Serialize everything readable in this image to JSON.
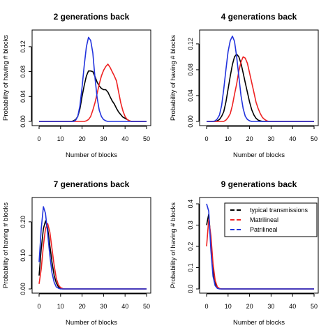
{
  "chart_data": [
    {
      "type": "line",
      "title": "2 generations back",
      "xlabel": "Number of blocks",
      "ylabel": "Probability of having # blocks",
      "xlim": [
        0,
        50
      ],
      "ylim": [
        0,
        0.14
      ],
      "xticks": [
        0,
        10,
        20,
        30,
        40,
        50
      ],
      "yticks": [
        "0.00",
        "0.04",
        "0.08",
        "0.12"
      ],
      "x": [
        0,
        1,
        2,
        3,
        4,
        5,
        6,
        7,
        8,
        9,
        10,
        11,
        12,
        13,
        14,
        15,
        16,
        17,
        18,
        19,
        20,
        21,
        22,
        23,
        24,
        25,
        26,
        27,
        28,
        29,
        30,
        31,
        32,
        33,
        34,
        35,
        36,
        37,
        38,
        39,
        40,
        41,
        42,
        43,
        44,
        45,
        46,
        47,
        48,
        49,
        50
      ],
      "series": [
        {
          "name": "typical transmissions",
          "color": "#000000",
          "values": [
            0,
            0,
            0,
            0,
            0,
            0,
            0,
            0,
            0,
            0,
            0,
            0,
            0,
            0,
            0,
            0,
            0.001,
            0.003,
            0.008,
            0.02,
            0.04,
            0.058,
            0.073,
            0.081,
            0.081,
            0.08,
            0.072,
            0.063,
            0.057,
            0.053,
            0.051,
            0.051,
            0.047,
            0.04,
            0.033,
            0.028,
            0.021,
            0.015,
            0.011,
            0.007,
            0.005,
            0.003,
            0.001,
            0,
            0,
            0,
            0,
            0,
            0,
            0,
            0
          ]
        },
        {
          "name": "Matrilineal",
          "color": "#ee2222",
          "values": [
            0,
            0,
            0,
            0,
            0,
            0,
            0,
            0,
            0,
            0,
            0,
            0,
            0,
            0,
            0,
            0,
            0,
            0,
            0,
            0,
            0,
            0,
            0.001,
            0.003,
            0.008,
            0.018,
            0.03,
            0.045,
            0.06,
            0.073,
            0.082,
            0.088,
            0.092,
            0.087,
            0.08,
            0.073,
            0.065,
            0.047,
            0.03,
            0.017,
            0.008,
            0.003,
            0.001,
            0,
            0,
            0,
            0,
            0,
            0,
            0,
            0
          ]
        },
        {
          "name": "Patrilineal",
          "color": "#2233dd",
          "values": [
            0,
            0,
            0,
            0,
            0,
            0,
            0,
            0,
            0,
            0,
            0,
            0,
            0,
            0,
            0,
            0,
            0,
            0.002,
            0.008,
            0.025,
            0.055,
            0.09,
            0.12,
            0.135,
            0.13,
            0.11,
            0.07,
            0.038,
            0.018,
            0.008,
            0.003,
            0.001,
            0,
            0,
            0,
            0,
            0,
            0,
            0,
            0,
            0,
            0,
            0,
            0,
            0,
            0,
            0,
            0,
            0,
            0,
            0
          ]
        }
      ]
    },
    {
      "type": "line",
      "title": "4 generations back",
      "xlabel": "Number of blocks",
      "ylabel": "Probability of having # blocks",
      "xlim": [
        0,
        50
      ],
      "ylim": [
        0,
        0.135
      ],
      "xticks": [
        0,
        10,
        20,
        30,
        40,
        50
      ],
      "yticks": [
        "0.00",
        "0.04",
        "0.08",
        "0.12"
      ],
      "x": [
        0,
        1,
        2,
        3,
        4,
        5,
        6,
        7,
        8,
        9,
        10,
        11,
        12,
        13,
        14,
        15,
        16,
        17,
        18,
        19,
        20,
        21,
        22,
        23,
        24,
        25,
        26,
        27,
        28,
        29,
        30,
        31,
        32,
        33,
        34,
        35,
        36,
        37,
        38,
        39,
        40,
        41,
        42,
        43,
        44,
        45,
        46,
        47,
        48,
        49,
        50
      ],
      "series": [
        {
          "name": "typical transmissions",
          "color": "#000000",
          "values": [
            0,
            0,
            0,
            0,
            0,
            0.001,
            0.003,
            0.008,
            0.015,
            0.03,
            0.05,
            0.07,
            0.088,
            0.1,
            0.104,
            0.1,
            0.09,
            0.075,
            0.06,
            0.045,
            0.03,
            0.018,
            0.01,
            0.005,
            0.002,
            0.001,
            0,
            0,
            0,
            0,
            0,
            0,
            0,
            0,
            0,
            0,
            0,
            0,
            0,
            0,
            0,
            0,
            0,
            0,
            0,
            0,
            0,
            0,
            0,
            0,
            0
          ]
        },
        {
          "name": "Matrilineal",
          "color": "#ee2222",
          "values": [
            0,
            0,
            0,
            0,
            0,
            0,
            0,
            0,
            0,
            0.002,
            0.006,
            0.012,
            0.025,
            0.042,
            0.058,
            0.078,
            0.092,
            0.1,
            0.098,
            0.09,
            0.075,
            0.06,
            0.045,
            0.03,
            0.02,
            0.012,
            0.006,
            0.003,
            0.001,
            0,
            0,
            0,
            0,
            0,
            0,
            0,
            0,
            0,
            0,
            0,
            0,
            0,
            0,
            0,
            0,
            0,
            0,
            0,
            0,
            0,
            0
          ]
        },
        {
          "name": "Patrilineal",
          "color": "#2233dd",
          "values": [
            0,
            0,
            0,
            0,
            0.001,
            0.004,
            0.01,
            0.025,
            0.05,
            0.08,
            0.108,
            0.125,
            0.132,
            0.124,
            0.1,
            0.07,
            0.04,
            0.02,
            0.008,
            0.003,
            0.001,
            0,
            0,
            0,
            0,
            0,
            0,
            0,
            0,
            0,
            0,
            0,
            0,
            0,
            0,
            0,
            0,
            0,
            0,
            0,
            0,
            0,
            0,
            0,
            0,
            0,
            0,
            0,
            0,
            0,
            0
          ]
        }
      ]
    },
    {
      "type": "line",
      "title": "7 generations back",
      "xlabel": "Number of blocks",
      "ylabel": "Probability of having # blocks",
      "xlim": [
        0,
        50
      ],
      "ylim": [
        0,
        0.26
      ],
      "xticks": [
        0,
        10,
        20,
        30,
        40,
        50
      ],
      "yticks": [
        "0.00",
        "0.10",
        "0.20"
      ],
      "x": [
        0,
        1,
        2,
        3,
        4,
        5,
        6,
        7,
        8,
        9,
        10,
        11,
        12,
        13,
        14,
        15,
        16,
        17,
        18,
        19,
        20,
        21,
        22,
        23,
        24,
        25,
        26,
        27,
        28,
        29,
        30,
        31,
        32,
        33,
        34,
        35,
        36,
        37,
        38,
        39,
        40,
        41,
        42,
        43,
        44,
        45,
        46,
        47,
        48,
        49,
        50
      ],
      "series": [
        {
          "name": "typical transmissions",
          "color": "#000000",
          "values": [
            0.04,
            0.12,
            0.18,
            0.203,
            0.18,
            0.13,
            0.08,
            0.04,
            0.018,
            0.006,
            0.002,
            0,
            0,
            0,
            0,
            0,
            0,
            0,
            0,
            0,
            0,
            0,
            0,
            0,
            0,
            0,
            0,
            0,
            0,
            0,
            0,
            0,
            0,
            0,
            0,
            0,
            0,
            0,
            0,
            0,
            0,
            0,
            0,
            0,
            0,
            0,
            0,
            0,
            0,
            0,
            0
          ]
        },
        {
          "name": "Matrilineal",
          "color": "#ee2222",
          "values": [
            0.015,
            0.06,
            0.13,
            0.18,
            0.195,
            0.17,
            0.12,
            0.07,
            0.032,
            0.012,
            0.004,
            0.001,
            0,
            0,
            0,
            0,
            0,
            0,
            0,
            0,
            0,
            0,
            0,
            0,
            0,
            0,
            0,
            0,
            0,
            0,
            0,
            0,
            0,
            0,
            0,
            0,
            0,
            0,
            0,
            0,
            0,
            0,
            0,
            0,
            0,
            0,
            0,
            0,
            0,
            0,
            0
          ]
        },
        {
          "name": "Patrilineal",
          "color": "#2233dd",
          "values": [
            0.08,
            0.18,
            0.245,
            0.225,
            0.165,
            0.1,
            0.048,
            0.02,
            0.006,
            0.002,
            0,
            0,
            0,
            0,
            0,
            0,
            0,
            0,
            0,
            0,
            0,
            0,
            0,
            0,
            0,
            0,
            0,
            0,
            0,
            0,
            0,
            0,
            0,
            0,
            0,
            0,
            0,
            0,
            0,
            0,
            0,
            0,
            0,
            0,
            0,
            0,
            0,
            0,
            0,
            0,
            0
          ]
        }
      ]
    },
    {
      "type": "line",
      "title": "9 generations back",
      "xlabel": "Number of blocks",
      "ylabel": "Probability of having # blocks",
      "xlim": [
        0,
        50
      ],
      "ylim": [
        0,
        0.41
      ],
      "xticks": [
        0,
        10,
        20,
        30,
        40,
        50
      ],
      "yticks": [
        "0.0",
        "0.1",
        "0.2",
        "0.3",
        "0.4"
      ],
      "x": [
        0,
        1,
        2,
        3,
        4,
        5,
        6,
        7,
        8,
        9,
        10,
        11,
        12,
        13,
        14,
        15,
        16,
        17,
        18,
        19,
        20,
        21,
        22,
        23,
        24,
        25,
        26,
        27,
        28,
        29,
        30,
        31,
        32,
        33,
        34,
        35,
        36,
        37,
        38,
        39,
        40,
        41,
        42,
        43,
        44,
        45,
        46,
        47,
        48,
        49,
        50
      ],
      "legend": {
        "position": "top-right",
        "entries": [
          "typical transmissions",
          "Matrilineal",
          "Patrilineal"
        ]
      },
      "series": [
        {
          "name": "typical transmissions",
          "color": "#000000",
          "values": [
            0.3,
            0.352,
            0.22,
            0.09,
            0.025,
            0.006,
            0.001,
            0,
            0,
            0,
            0,
            0,
            0,
            0,
            0,
            0,
            0,
            0,
            0,
            0,
            0,
            0,
            0,
            0,
            0,
            0,
            0,
            0,
            0,
            0,
            0,
            0,
            0,
            0,
            0,
            0,
            0,
            0,
            0,
            0,
            0,
            0,
            0,
            0,
            0,
            0,
            0,
            0,
            0,
            0,
            0
          ]
        },
        {
          "name": "Matrilineal",
          "color": "#ee2222",
          "values": [
            0.2,
            0.328,
            0.25,
            0.12,
            0.04,
            0.01,
            0.002,
            0,
            0,
            0,
            0,
            0,
            0,
            0,
            0,
            0,
            0,
            0,
            0,
            0,
            0,
            0,
            0,
            0,
            0,
            0,
            0,
            0,
            0,
            0,
            0,
            0,
            0,
            0,
            0,
            0,
            0,
            0,
            0,
            0,
            0,
            0,
            0,
            0,
            0,
            0,
            0,
            0,
            0,
            0,
            0
          ]
        },
        {
          "name": "Patrilineal",
          "color": "#2233dd",
          "values": [
            0.4,
            0.365,
            0.18,
            0.06,
            0.015,
            0.003,
            0,
            0,
            0,
            0,
            0,
            0,
            0,
            0,
            0,
            0,
            0,
            0,
            0,
            0,
            0,
            0,
            0,
            0,
            0,
            0,
            0,
            0,
            0,
            0,
            0,
            0,
            0,
            0,
            0,
            0,
            0,
            0,
            0,
            0,
            0,
            0,
            0,
            0,
            0,
            0,
            0,
            0,
            0,
            0,
            0
          ]
        }
      ]
    }
  ]
}
